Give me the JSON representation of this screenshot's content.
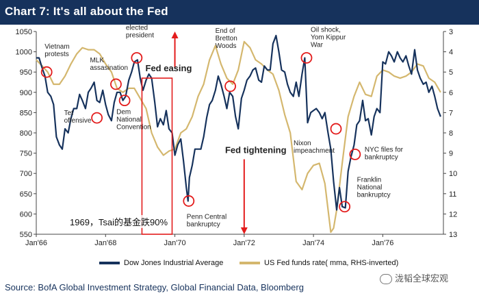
{
  "title": "Chart 7: It's all about the Fed",
  "overlay_caption": "1969，Tsai的基金跌90%",
  "source": "Source: BofA Global Investment Strategy, Global Financial Data, Bloomberg",
  "watermark": "泷韬全球宏观",
  "colors": {
    "dow": "#16325c",
    "fed": "#d4b76e",
    "box": "#e31b1b",
    "arrow": "#e31b1b",
    "circle": "#e31b1b"
  },
  "chart_data": {
    "type": "line",
    "title": "Chart 7: It's all about the Fed",
    "xlabel": "",
    "ylabel": "",
    "x_ticks": [
      "Jan'66",
      "Jan'68",
      "Jan'70",
      "Jan'72",
      "Jan'74",
      "Jan'76"
    ],
    "ylim_left": [
      550,
      1050
    ],
    "yticks_left": [
      550,
      600,
      650,
      700,
      750,
      800,
      850,
      900,
      950,
      1000,
      1050
    ],
    "ylim_right": [
      13,
      3
    ],
    "yticks_right": [
      3,
      4,
      5,
      6,
      7,
      8,
      9,
      10,
      11,
      12,
      13
    ],
    "right_axis_inverted": true,
    "legend_position": "bottom",
    "series": [
      {
        "name": "Dow Jones Industrial Average",
        "axis": "left",
        "points": [
          [
            1966.0,
            985
          ],
          [
            1966.08,
            985
          ],
          [
            1966.17,
            960
          ],
          [
            1966.25,
            940
          ],
          [
            1966.33,
            900
          ],
          [
            1966.42,
            890
          ],
          [
            1966.5,
            870
          ],
          [
            1966.58,
            790
          ],
          [
            1966.67,
            770
          ],
          [
            1966.75,
            760
          ],
          [
            1966.83,
            810
          ],
          [
            1966.92,
            800
          ],
          [
            1967.0,
            835
          ],
          [
            1967.08,
            860
          ],
          [
            1967.17,
            860
          ],
          [
            1967.25,
            895
          ],
          [
            1967.33,
            880
          ],
          [
            1967.42,
            860
          ],
          [
            1967.5,
            900
          ],
          [
            1967.58,
            910
          ],
          [
            1967.67,
            925
          ],
          [
            1967.75,
            880
          ],
          [
            1967.83,
            875
          ],
          [
            1967.92,
            905
          ],
          [
            1968.0,
            870
          ],
          [
            1968.08,
            845
          ],
          [
            1968.17,
            830
          ],
          [
            1968.25,
            875
          ],
          [
            1968.33,
            900
          ],
          [
            1968.42,
            900
          ],
          [
            1968.5,
            880
          ],
          [
            1968.58,
            890
          ],
          [
            1968.67,
            930
          ],
          [
            1968.75,
            950
          ],
          [
            1968.83,
            975
          ],
          [
            1968.92,
            980
          ],
          [
            1969.0,
            935
          ],
          [
            1969.08,
            905
          ],
          [
            1969.17,
            930
          ],
          [
            1969.25,
            945
          ],
          [
            1969.33,
            935
          ],
          [
            1969.42,
            875
          ],
          [
            1969.5,
            815
          ],
          [
            1969.58,
            835
          ],
          [
            1969.67,
            820
          ],
          [
            1969.75,
            855
          ],
          [
            1969.83,
            810
          ],
          [
            1969.92,
            800
          ],
          [
            1970.0,
            745
          ],
          [
            1970.08,
            770
          ],
          [
            1970.17,
            785
          ],
          [
            1970.25,
            730
          ],
          [
            1970.33,
            665
          ],
          [
            1970.38,
            632
          ],
          [
            1970.42,
            690
          ],
          [
            1970.5,
            720
          ],
          [
            1970.58,
            760
          ],
          [
            1970.67,
            760
          ],
          [
            1970.75,
            760
          ],
          [
            1970.83,
            790
          ],
          [
            1970.92,
            838
          ],
          [
            1971.0,
            870
          ],
          [
            1971.08,
            880
          ],
          [
            1971.17,
            905
          ],
          [
            1971.25,
            940
          ],
          [
            1971.33,
            920
          ],
          [
            1971.42,
            890
          ],
          [
            1971.5,
            860
          ],
          [
            1971.58,
            900
          ],
          [
            1971.67,
            890
          ],
          [
            1971.75,
            840
          ],
          [
            1971.83,
            810
          ],
          [
            1971.92,
            885
          ],
          [
            1972.0,
            905
          ],
          [
            1972.08,
            930
          ],
          [
            1972.17,
            940
          ],
          [
            1972.25,
            955
          ],
          [
            1972.33,
            960
          ],
          [
            1972.42,
            930
          ],
          [
            1972.5,
            925
          ],
          [
            1972.58,
            965
          ],
          [
            1972.67,
            955
          ],
          [
            1972.75,
            955
          ],
          [
            1972.83,
            1020
          ],
          [
            1972.92,
            1040
          ],
          [
            1973.0,
            1000
          ],
          [
            1973.08,
            955
          ],
          [
            1973.17,
            950
          ],
          [
            1973.25,
            920
          ],
          [
            1973.33,
            900
          ],
          [
            1973.42,
            890
          ],
          [
            1973.5,
            925
          ],
          [
            1973.58,
            890
          ],
          [
            1973.67,
            945
          ],
          [
            1973.75,
            985
          ],
          [
            1973.83,
            825
          ],
          [
            1973.92,
            850
          ],
          [
            1974.0,
            855
          ],
          [
            1974.08,
            860
          ],
          [
            1974.17,
            850
          ],
          [
            1974.25,
            835
          ],
          [
            1974.33,
            850
          ],
          [
            1974.42,
            800
          ],
          [
            1974.5,
            760
          ],
          [
            1974.58,
            680
          ],
          [
            1974.67,
            610
          ],
          [
            1974.75,
            665
          ],
          [
            1974.83,
            618
          ],
          [
            1974.92,
            615
          ],
          [
            1975.0,
            705
          ],
          [
            1975.08,
            740
          ],
          [
            1975.17,
            770
          ],
          [
            1975.25,
            820
          ],
          [
            1975.33,
            830
          ],
          [
            1975.42,
            880
          ],
          [
            1975.5,
            830
          ],
          [
            1975.58,
            835
          ],
          [
            1975.67,
            795
          ],
          [
            1975.75,
            840
          ],
          [
            1975.83,
            860
          ],
          [
            1975.92,
            850
          ],
          [
            1976.0,
            975
          ],
          [
            1976.08,
            970
          ],
          [
            1976.17,
            1000
          ],
          [
            1976.25,
            990
          ],
          [
            1976.33,
            975
          ],
          [
            1976.42,
            1000
          ],
          [
            1976.5,
            985
          ],
          [
            1976.58,
            975
          ],
          [
            1976.67,
            990
          ],
          [
            1976.75,
            965
          ],
          [
            1976.83,
            945
          ],
          [
            1976.92,
            1005
          ],
          [
            1977.0,
            955
          ],
          [
            1977.08,
            935
          ],
          [
            1977.17,
            920
          ],
          [
            1977.25,
            925
          ],
          [
            1977.33,
            900
          ],
          [
            1977.42,
            915
          ],
          [
            1977.5,
            890
          ],
          [
            1977.58,
            860
          ],
          [
            1977.67,
            840
          ]
        ]
      },
      {
        "name": "US Fed funds rate( mma, RHS-inverted)",
        "axis": "right",
        "points": [
          [
            1966.0,
            4.4
          ],
          [
            1966.17,
            4.7
          ],
          [
            1966.33,
            5.0
          ],
          [
            1966.5,
            5.6
          ],
          [
            1966.67,
            5.6
          ],
          [
            1966.83,
            5.2
          ],
          [
            1967.0,
            4.6
          ],
          [
            1967.17,
            4.1
          ],
          [
            1967.33,
            3.8
          ],
          [
            1967.5,
            3.9
          ],
          [
            1967.67,
            3.9
          ],
          [
            1967.83,
            4.1
          ],
          [
            1968.0,
            4.6
          ],
          [
            1968.17,
            5.0
          ],
          [
            1968.33,
            5.8
          ],
          [
            1968.5,
            6.0
          ],
          [
            1968.67,
            5.8
          ],
          [
            1968.83,
            5.8
          ],
          [
            1969.0,
            6.3
          ],
          [
            1969.17,
            6.8
          ],
          [
            1969.33,
            8.0
          ],
          [
            1969.5,
            8.7
          ],
          [
            1969.67,
            9.1
          ],
          [
            1969.83,
            8.9
          ],
          [
            1970.0,
            8.8
          ],
          [
            1970.17,
            8.0
          ],
          [
            1970.33,
            7.8
          ],
          [
            1970.5,
            7.2
          ],
          [
            1970.67,
            6.2
          ],
          [
            1970.83,
            5.6
          ],
          [
            1971.0,
            4.4
          ],
          [
            1971.17,
            3.7
          ],
          [
            1971.33,
            4.6
          ],
          [
            1971.5,
            5.3
          ],
          [
            1971.67,
            5.6
          ],
          [
            1971.83,
            4.9
          ],
          [
            1972.0,
            3.5
          ],
          [
            1972.17,
            3.8
          ],
          [
            1972.33,
            4.4
          ],
          [
            1972.5,
            4.6
          ],
          [
            1972.67,
            4.9
          ],
          [
            1972.83,
            5.1
          ],
          [
            1973.0,
            5.9
          ],
          [
            1973.17,
            7.1
          ],
          [
            1973.33,
            8.0
          ],
          [
            1973.5,
            10.4
          ],
          [
            1973.67,
            10.8
          ],
          [
            1973.83,
            10.0
          ],
          [
            1974.0,
            9.6
          ],
          [
            1974.17,
            9.5
          ],
          [
            1974.33,
            10.5
          ],
          [
            1974.5,
            12.9
          ],
          [
            1974.58,
            12.7
          ],
          [
            1974.67,
            11.8
          ],
          [
            1974.83,
            9.5
          ],
          [
            1975.0,
            7.2
          ],
          [
            1975.17,
            6.2
          ],
          [
            1975.33,
            5.5
          ],
          [
            1975.5,
            6.1
          ],
          [
            1975.67,
            6.2
          ],
          [
            1975.83,
            5.2
          ],
          [
            1976.0,
            4.9
          ],
          [
            1976.17,
            5.0
          ],
          [
            1976.33,
            5.2
          ],
          [
            1976.5,
            5.3
          ],
          [
            1976.67,
            5.2
          ],
          [
            1976.83,
            5.0
          ],
          [
            1977.0,
            4.6
          ],
          [
            1977.17,
            4.7
          ],
          [
            1977.33,
            5.3
          ],
          [
            1977.5,
            5.5
          ],
          [
            1977.67,
            6.0
          ]
        ]
      }
    ],
    "annotations": [
      {
        "text": "Vietnam\nprotests",
        "x": 1966.3,
        "y": 950
      },
      {
        "text": "MLK\nassasination",
        "x": 1968.3,
        "y": 920
      },
      {
        "text": "Tet\noffensive",
        "x": 1967.75,
        "y": 837
      },
      {
        "text": "Dem\nNational\nConvention",
        "x": 1968.55,
        "y": 880
      },
      {
        "text": "Nixon\nelected\npresident",
        "x": 1968.9,
        "y": 985
      },
      {
        "text": "Penn Central\nbankruptcy",
        "x": 1970.4,
        "y": 632
      },
      {
        "text": "End of\nBretton\nWoods",
        "x": 1971.6,
        "y": 915
      },
      {
        "text": "Oil shock,\nYom Kippur\nWar",
        "x": 1973.8,
        "y": 985
      },
      {
        "text": "Nixon\nimpeachment",
        "x": 1974.65,
        "y": 810
      },
      {
        "text": "NYC files for\nbankruptcy",
        "x": 1975.2,
        "y": 747
      },
      {
        "text": "Franklin\nNational\nbankruptcy",
        "x": 1974.9,
        "y": 618
      }
    ],
    "callouts": [
      {
        "text": "Fed easing",
        "direction": "up"
      },
      {
        "text": "Fed tightening",
        "direction": "down"
      }
    ],
    "legend": [
      "Dow Jones Industrial Average",
      "US Fed funds rate( mma, RHS-inverted)"
    ]
  }
}
